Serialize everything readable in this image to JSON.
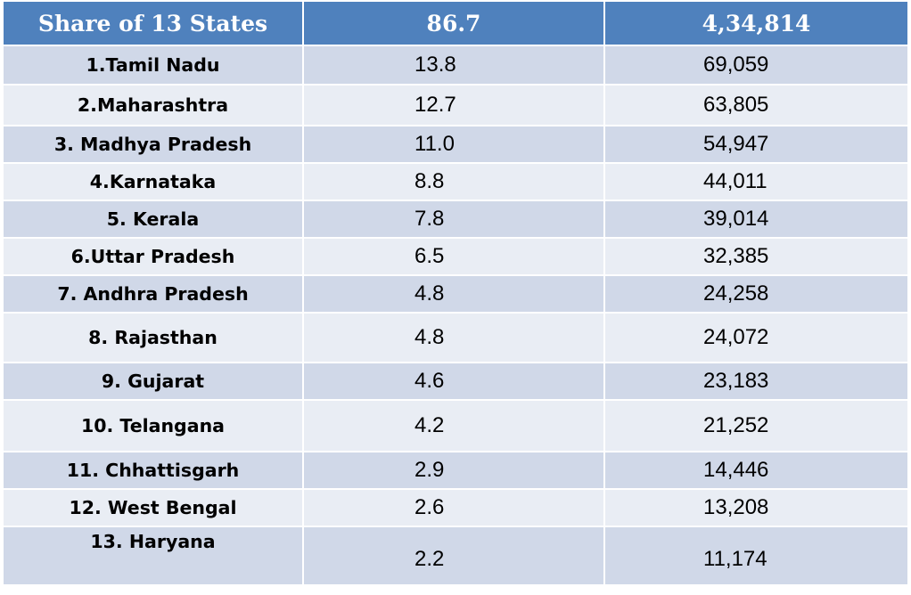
{
  "header": {
    "label": "Share of 13 States",
    "share": "86.7",
    "amount": "4,34,814"
  },
  "rows": [
    {
      "state": "1.Tamil Nadu",
      "share": "13.8",
      "amount": "69,059"
    },
    {
      "state": "2.Maharashtra",
      "share": "12.7",
      "amount": "63,805"
    },
    {
      "state": "3. Madhya Pradesh",
      "share": "11.0",
      "amount": "54,947"
    },
    {
      "state": "4.Karnataka",
      "share": "8.8",
      "amount": "44,011"
    },
    {
      "state": "5. Kerala",
      "share": "7.8",
      "amount": "39,014"
    },
    {
      "state": "6.Uttar Pradesh",
      "share": "6.5",
      "amount": "32,385"
    },
    {
      "state": "7. Andhra Pradesh",
      "share": "4.8",
      "amount": "24,258"
    },
    {
      "state": "8. Rajasthan",
      "share": "4.8",
      "amount": "24,072"
    },
    {
      "state": "9. Gujarat",
      "share": "4.6",
      "amount": "23,183"
    },
    {
      "state": "10. Telangana",
      "share": "4.2",
      "amount": "21,252"
    },
    {
      "state": "11. Chhattisgarh",
      "share": "2.9",
      "amount": "14,446"
    },
    {
      "state": "12. West Bengal",
      "share": "2.6",
      "amount": "13,208"
    },
    {
      "state": "13. Haryana",
      "share": "2.2",
      "amount": "11,174"
    }
  ],
  "colors": {
    "header_bg": "#4f81bd",
    "row_dark": "#d0d8e8",
    "row_light": "#e9edf4"
  }
}
